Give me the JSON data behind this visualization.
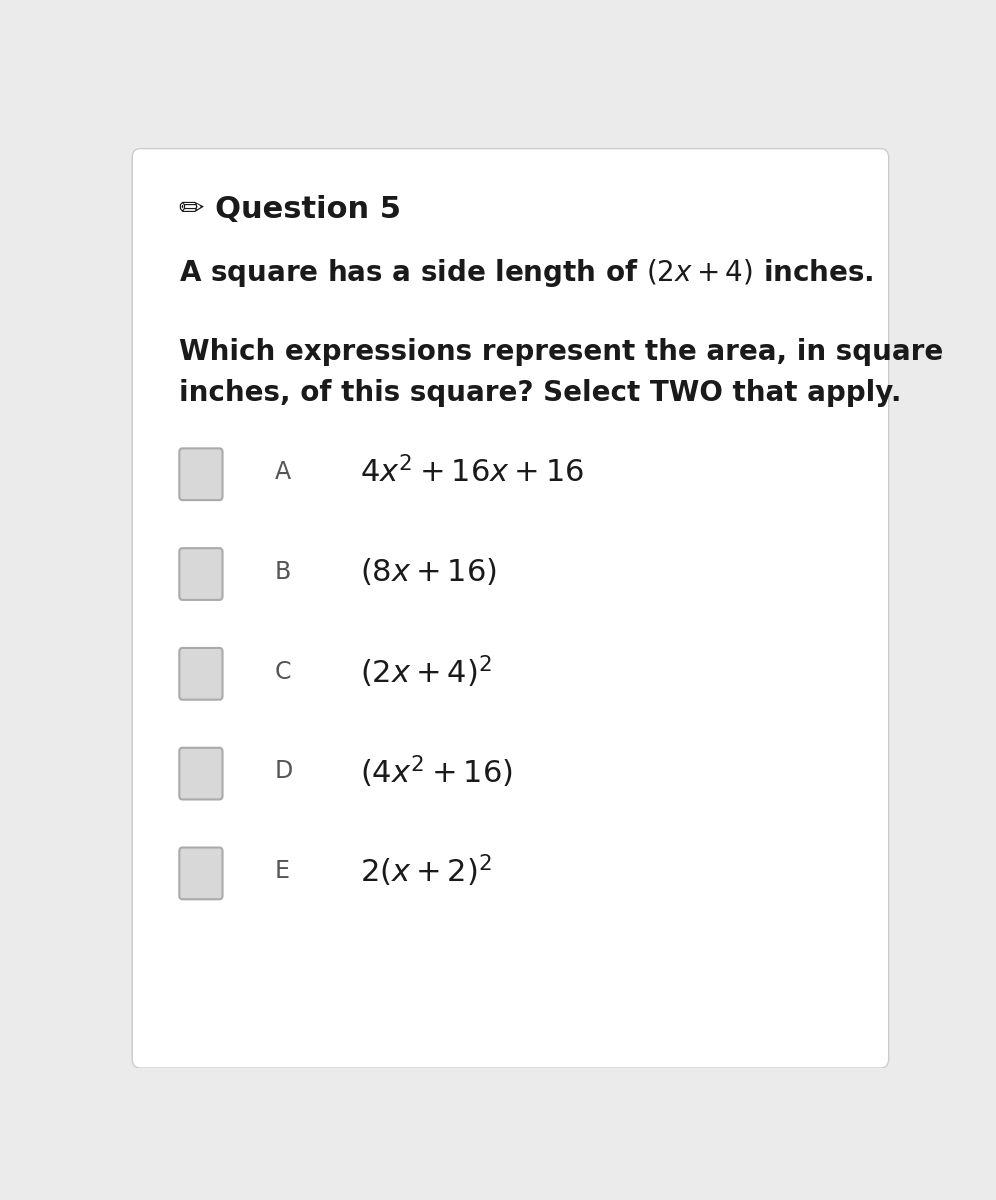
{
  "title": "Question 5",
  "pencil_icon": "✏",
  "subtitle": "A square has a side length of $\\left(2x + 4\\right)$ inches.",
  "question": "Which expressions represent the area, in square\ninches, of this square? Select TWO that apply.",
  "options": [
    {
      "label": "A",
      "expr": "$4x^2 + 16x + 16$"
    },
    {
      "label": "B",
      "expr": "$(8x + 16)$"
    },
    {
      "label": "C",
      "expr": "$(2x + 4)^2$"
    },
    {
      "label": "D",
      "expr": "$(4x^2 + 16)$"
    },
    {
      "label": "E",
      "expr": "$2(x + 2)^2$"
    }
  ],
  "bg_color": "#ebebeb",
  "card_color": "#ffffff",
  "checkbox_color": "#d8d8d8",
  "checkbox_border": "#aaaaaa",
  "title_fontsize": 22,
  "subtitle_fontsize": 20,
  "question_fontsize": 20,
  "label_fontsize": 17,
  "expr_fontsize": 22,
  "text_color": "#1a1a1a",
  "label_color": "#555555"
}
